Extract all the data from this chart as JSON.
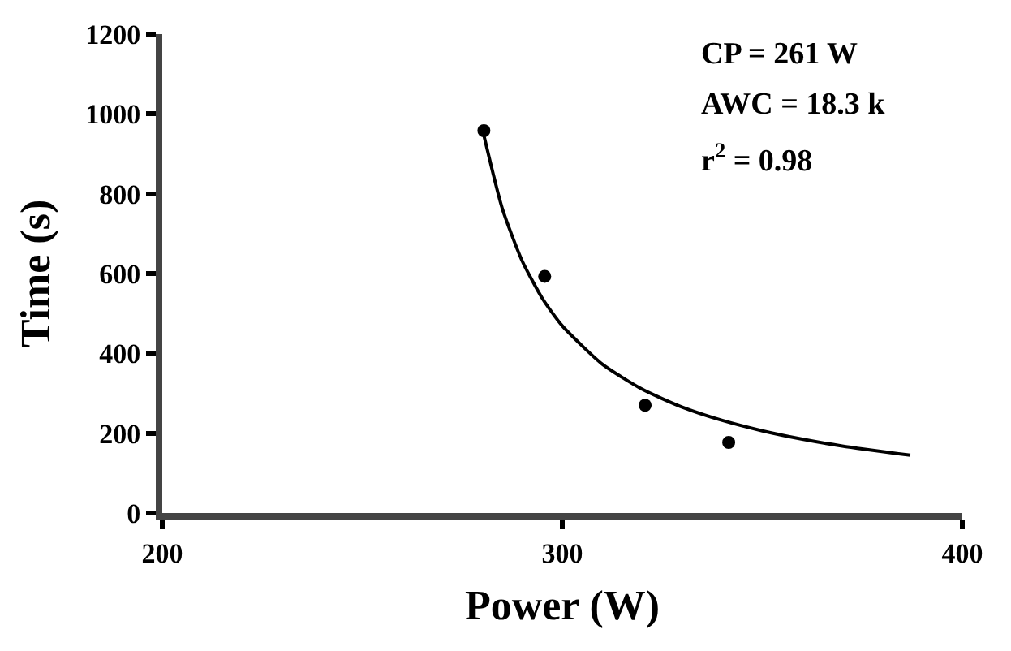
{
  "chart_data": {
    "type": "scatter",
    "xlabel": "Power (W)",
    "ylabel": "Time (s)",
    "xlim": [
      200,
      400
    ],
    "xticks": [
      200,
      300,
      400
    ],
    "ylim": [
      0,
      1200
    ],
    "yticks": [
      0,
      200,
      400,
      600,
      800,
      1000,
      1200
    ],
    "marker": "circle",
    "series": [
      {
        "color": "#000000",
        "x": [
          280.4,
          295.6,
          320.7,
          341.6
        ],
        "values": [
          958,
          593,
          270,
          177
        ]
      },
      {
        "type": "line",
        "color": "#000000",
        "marker": "none",
        "line_style": "solid",
        "x": [
          280,
          285,
          290,
          295,
          300,
          310,
          320,
          330,
          340,
          350,
          360,
          370,
          387
        ],
        "values": [
          963,
          763,
          631,
          538,
          469,
          373,
          310,
          265,
          232,
          206,
          185,
          168,
          145
        ]
      }
    ],
    "annotations": [
      "CP = 261 W",
      "AWC = 18.3 k",
      "r$^{2}$ = 0.98"
    ]
  }
}
